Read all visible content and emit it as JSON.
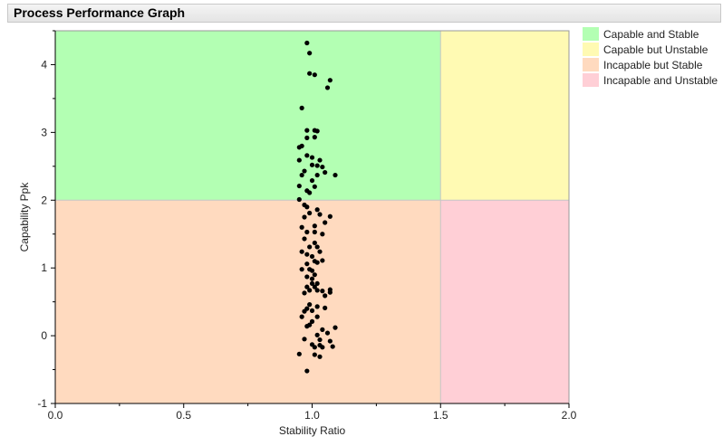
{
  "header": {
    "title": "Process Performance Graph"
  },
  "legend": {
    "items": [
      {
        "label": "Capable and Stable",
        "color": "#b3ffb3"
      },
      {
        "label": "Capable but Unstable",
        "color": "#fffab3"
      },
      {
        "label": "Incapable but Stable",
        "color": "#ffdabf"
      },
      {
        "label": "Incapable and Unstable",
        "color": "#ffcfd6"
      }
    ]
  },
  "chart_data": {
    "type": "scatter",
    "title": "Process Performance Graph",
    "xlabel": "Stability Ratio",
    "ylabel": "Capability Ppk",
    "xlim": [
      0,
      2
    ],
    "ylim": [
      -1,
      4.5
    ],
    "x_ticks": [
      "0.0",
      "0.5",
      "1.0",
      "1.5",
      "2.0"
    ],
    "y_ticks": [
      "-1",
      "0",
      "1",
      "2",
      "3",
      "4"
    ],
    "grid": false,
    "legend_position": "right",
    "regions": [
      {
        "label": "Capable and Stable",
        "x": [
          0,
          1.5
        ],
        "y": [
          2,
          4.5
        ],
        "color": "#b3ffb3"
      },
      {
        "label": "Capable but Unstable",
        "x": [
          1.5,
          2
        ],
        "y": [
          2,
          4.5
        ],
        "color": "#fffab3"
      },
      {
        "label": "Incapable but Stable",
        "x": [
          0,
          1.5
        ],
        "y": [
          -1,
          2
        ],
        "color": "#ffdabf"
      },
      {
        "label": "Incapable and Unstable",
        "x": [
          1.5,
          2
        ],
        "y": [
          -1,
          2
        ],
        "color": "#ffcfd6"
      }
    ],
    "marker_color": "#000000",
    "points": [
      [
        0.98,
        4.32
      ],
      [
        0.99,
        4.17
      ],
      [
        0.99,
        3.87
      ],
      [
        1.01,
        3.85
      ],
      [
        1.07,
        3.77
      ],
      [
        1.06,
        3.66
      ],
      [
        0.96,
        3.36
      ],
      [
        0.98,
        3.03
      ],
      [
        1.01,
        3.03
      ],
      [
        1.02,
        3.02
      ],
      [
        0.98,
        2.92
      ],
      [
        1.01,
        2.93
      ],
      [
        0.96,
        2.8
      ],
      [
        0.95,
        2.78
      ],
      [
        0.98,
        2.66
      ],
      [
        1.0,
        2.63
      ],
      [
        0.95,
        2.59
      ],
      [
        1.03,
        2.59
      ],
      [
        1.0,
        2.52
      ],
      [
        1.02,
        2.51
      ],
      [
        1.04,
        2.49
      ],
      [
        0.97,
        2.43
      ],
      [
        1.05,
        2.41
      ],
      [
        0.96,
        2.37
      ],
      [
        1.02,
        2.37
      ],
      [
        1.09,
        2.37
      ],
      [
        1.0,
        2.29
      ],
      [
        0.95,
        2.21
      ],
      [
        1.01,
        2.2
      ],
      [
        0.98,
        2.14
      ],
      [
        0.99,
        2.11
      ],
      [
        0.95,
        2.01
      ],
      [
        0.97,
        1.93
      ],
      [
        0.98,
        1.9
      ],
      [
        1.02,
        1.86
      ],
      [
        0.99,
        1.81
      ],
      [
        1.03,
        1.79
      ],
      [
        1.07,
        1.76
      ],
      [
        0.97,
        1.75
      ],
      [
        1.05,
        1.67
      ],
      [
        1.01,
        1.62
      ],
      [
        0.96,
        1.6
      ],
      [
        0.98,
        1.53
      ],
      [
        1.01,
        1.53
      ],
      [
        1.04,
        1.5
      ],
      [
        0.97,
        1.43
      ],
      [
        1.01,
        1.37
      ],
      [
        1.02,
        1.31
      ],
      [
        0.99,
        1.31
      ],
      [
        0.96,
        1.24
      ],
      [
        1.03,
        1.24
      ],
      [
        0.98,
        1.2
      ],
      [
        1.0,
        1.17
      ],
      [
        1.01,
        1.1
      ],
      [
        1.04,
        1.11
      ],
      [
        1.02,
        1.08
      ],
      [
        0.98,
        1.06
      ],
      [
        0.96,
        0.98
      ],
      [
        0.99,
        0.98
      ],
      [
        1.0,
        0.96
      ],
      [
        1.01,
        0.9
      ],
      [
        0.98,
        0.87
      ],
      [
        1.0,
        0.84
      ],
      [
        1.0,
        0.77
      ],
      [
        1.02,
        0.77
      ],
      [
        0.98,
        0.72
      ],
      [
        1.01,
        0.72
      ],
      [
        0.99,
        0.67
      ],
      [
        0.97,
        0.63
      ],
      [
        1.02,
        0.67
      ],
      [
        1.04,
        0.66
      ],
      [
        1.07,
        0.68
      ],
      [
        1.07,
        0.64
      ],
      [
        1.05,
        0.59
      ],
      [
        0.99,
        0.46
      ],
      [
        0.98,
        0.4
      ],
      [
        1.02,
        0.43
      ],
      [
        1.05,
        0.41
      ],
      [
        0.97,
        0.36
      ],
      [
        1.0,
        0.37
      ],
      [
        0.96,
        0.28
      ],
      [
        1.02,
        0.28
      ],
      [
        1.0,
        0.21
      ],
      [
        0.99,
        0.16
      ],
      [
        0.98,
        0.14
      ],
      [
        1.09,
        0.12
      ],
      [
        1.04,
        0.09
      ],
      [
        1.06,
        0.04
      ],
      [
        1.02,
        0.01
      ],
      [
        0.97,
        -0.05
      ],
      [
        1.03,
        -0.06
      ],
      [
        1.07,
        -0.08
      ],
      [
        1.0,
        -0.13
      ],
      [
        1.03,
        -0.14
      ],
      [
        1.01,
        -0.17
      ],
      [
        1.04,
        -0.17
      ],
      [
        1.08,
        -0.16
      ],
      [
        0.95,
        -0.27
      ],
      [
        1.01,
        -0.28
      ],
      [
        1.03,
        -0.31
      ],
      [
        0.98,
        -0.52
      ]
    ]
  }
}
